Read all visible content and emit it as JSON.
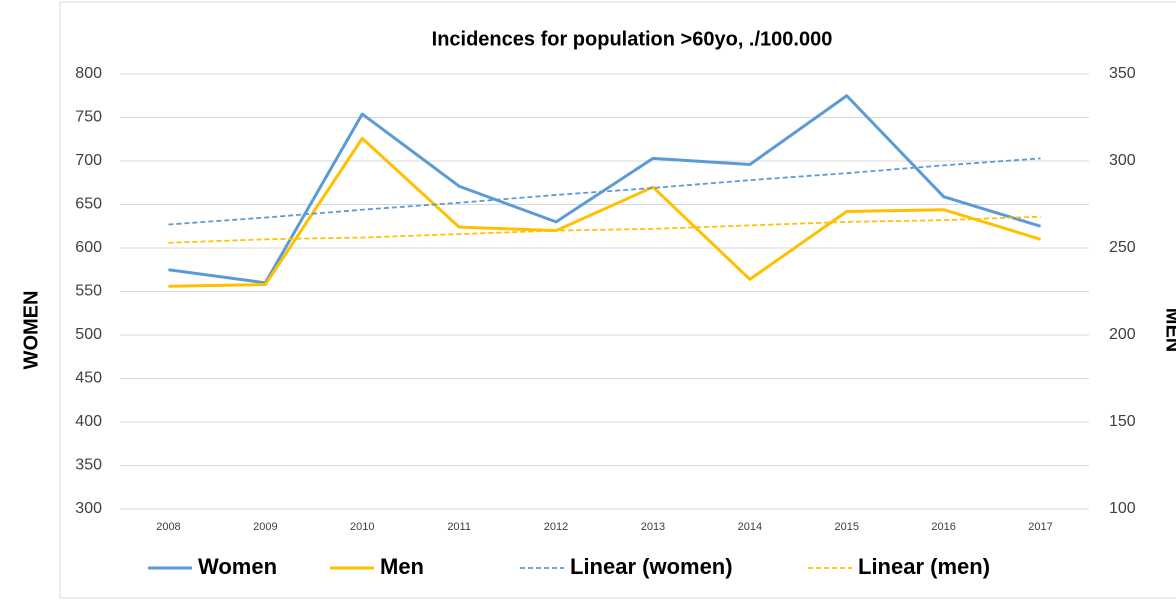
{
  "chart_data": {
    "type": "line",
    "title": "Incidences for population >60yo, ./100.000",
    "y_label": "WOMEN",
    "y2_label": "MEN",
    "categories": [
      "2008",
      "2009",
      "2010",
      "2011",
      "2012",
      "2013",
      "2014",
      "2015",
      "2016",
      "2017"
    ],
    "series": [
      {
        "name": "Women",
        "color": "#5b9bd5",
        "dashed": false,
        "values": [
          575,
          560,
          754,
          671,
          630,
          703,
          696,
          775,
          659,
          625
        ]
      },
      {
        "name": "Men",
        "color": "#ffc000",
        "dashed": false,
        "axis": "y2",
        "values": [
          228,
          229,
          313,
          262,
          260,
          285,
          232,
          271,
          272,
          255
        ]
      },
      {
        "name": "Linear (women)",
        "color": "#5b9bd5",
        "dashed": true,
        "values": [
          627,
          635,
          644,
          652,
          661,
          669,
          678,
          686,
          695,
          703
        ]
      },
      {
        "name": "Linear (men)",
        "color": "#ffc000",
        "dashed": true,
        "axis": "y2",
        "values": [
          253,
          255,
          256,
          258,
          260,
          261,
          263,
          265,
          266,
          268
        ]
      }
    ],
    "ylim": [
      300,
      800
    ],
    "yticks": [
      300,
      350,
      400,
      450,
      500,
      550,
      600,
      650,
      700,
      750,
      800
    ],
    "y2lim": [
      100,
      350
    ],
    "y2ticks": [
      100,
      150,
      200,
      250,
      300,
      350
    ],
    "grid": true,
    "legend": "bottom"
  }
}
